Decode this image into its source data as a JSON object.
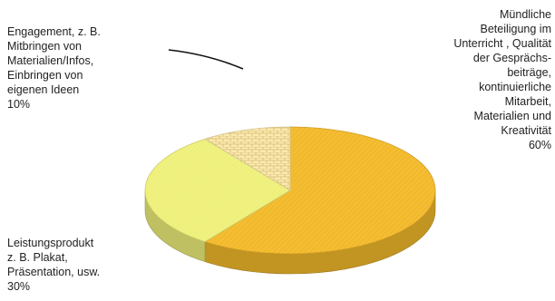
{
  "chart_data": {
    "type": "pie",
    "style": "3d",
    "slices": [
      {
        "label": "Mündliche\nBeteiligung im\nUnterricht , Qualität\nder Gesprächs-\nbeiträge,\nkontinuierliche\nMitarbeit,\nMaterialien und\nKreativität\n60%",
        "value": 60,
        "color": "#f2b92a"
      },
      {
        "label": "Leistungsprodukt\nz. B.  Plakat,\nPräsentation,  usw.\n30%",
        "value": 30,
        "color": "#eef07a"
      },
      {
        "label": "Engagement, z. B.\nMitbringen von\nMaterialien/Infos,\nEinbringen von\neigenen Ideen\n10%",
        "value": 10,
        "color": "#fbe9b0"
      }
    ]
  }
}
